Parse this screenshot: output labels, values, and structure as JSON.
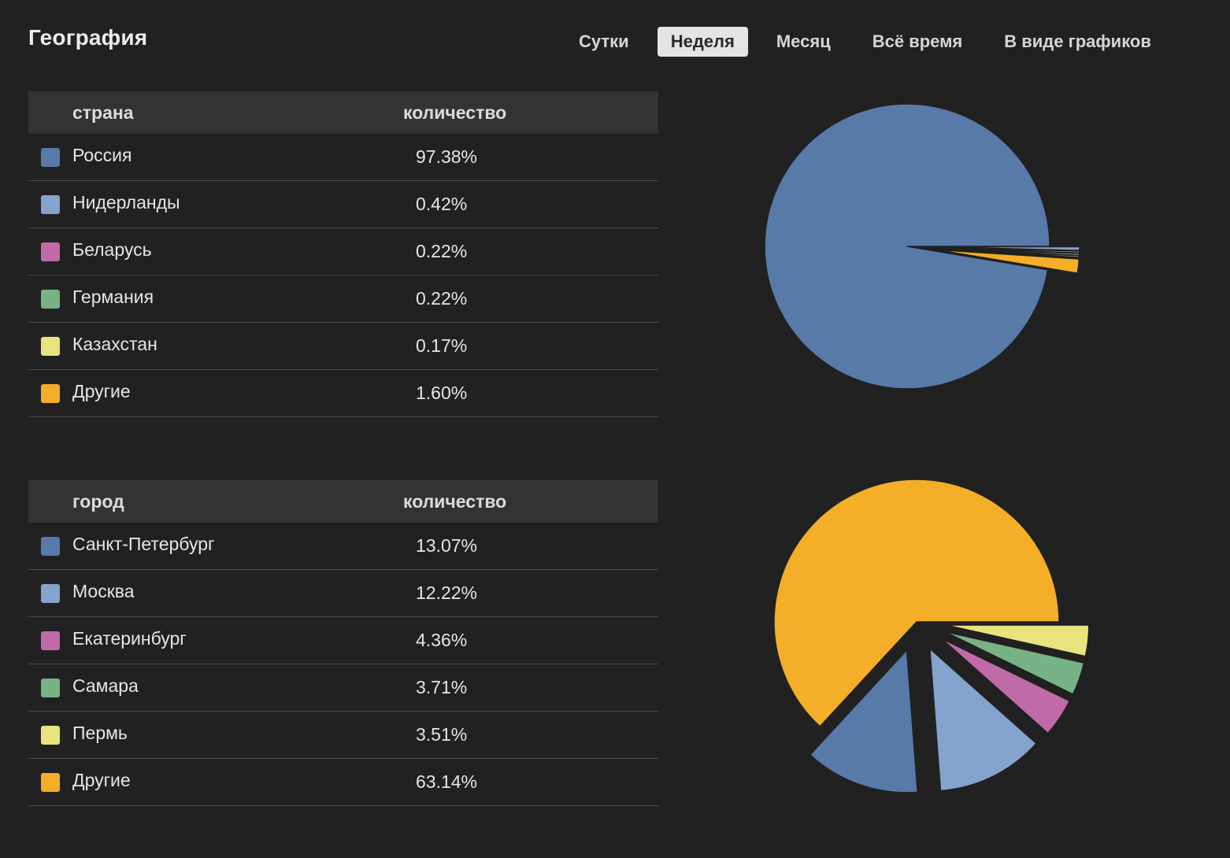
{
  "header": {
    "title": "География",
    "tabs": [
      {
        "label": "Сутки",
        "active": false
      },
      {
        "label": "Неделя",
        "active": true
      },
      {
        "label": "Месяц",
        "active": false
      },
      {
        "label": "Всё время",
        "active": false
      },
      {
        "label": "В виде графиков",
        "active": false
      }
    ]
  },
  "colors": {
    "blue": "#577aa8",
    "lightblue": "#84a3cd",
    "pink": "#c16aa8",
    "green": "#77b384",
    "yellow": "#e8e37d",
    "orange": "#f4ae27",
    "background": "#212121"
  },
  "country_table": {
    "col_name": "страна",
    "col_count": "количество",
    "rows": [
      {
        "name": "Россия",
        "value": "97.38%",
        "color": "#577aa8"
      },
      {
        "name": "Нидерланды",
        "value": "0.42%",
        "color": "#84a3cd"
      },
      {
        "name": "Беларусь",
        "value": "0.22%",
        "color": "#c16aa8"
      },
      {
        "name": "Германия",
        "value": "0.22%",
        "color": "#77b384"
      },
      {
        "name": "Казахстан",
        "value": "0.17%",
        "color": "#e8e37d"
      },
      {
        "name": "Другие",
        "value": "1.60%",
        "color": "#f4ae27"
      }
    ]
  },
  "city_table": {
    "col_name": "город",
    "col_count": "количество",
    "rows": [
      {
        "name": "Санкт-Петербург",
        "value": "13.07%",
        "color": "#577aa8"
      },
      {
        "name": "Москва",
        "value": "12.22%",
        "color": "#84a3cd"
      },
      {
        "name": "Екатеринбург",
        "value": "4.36%",
        "color": "#c16aa8"
      },
      {
        "name": "Самара",
        "value": "3.71%",
        "color": "#77b384"
      },
      {
        "name": "Пермь",
        "value": "3.51%",
        "color": "#e8e37d"
      },
      {
        "name": "Другие",
        "value": "63.14%",
        "color": "#f4ae27"
      }
    ]
  },
  "chart_data": [
    {
      "type": "pie",
      "categories": [
        "Россия",
        "Нидерланды",
        "Беларусь",
        "Германия",
        "Казахстан",
        "Другие"
      ],
      "values": [
        97.38,
        0.42,
        0.22,
        0.22,
        0.17,
        1.6
      ],
      "colors": [
        "#577aa8",
        "#84a3cd",
        "#c16aa8",
        "#77b384",
        "#e8e37d",
        "#f4ae27"
      ],
      "exploded": "all-but-largest"
    },
    {
      "type": "pie",
      "categories": [
        "Санкт-Петербург",
        "Москва",
        "Екатеринбург",
        "Самара",
        "Пермь",
        "Другие"
      ],
      "values": [
        13.07,
        12.22,
        4.36,
        3.71,
        3.51,
        63.14
      ],
      "colors": [
        "#577aa8",
        "#84a3cd",
        "#c16aa8",
        "#77b384",
        "#e8e37d",
        "#f4ae27"
      ],
      "exploded": "all-but-largest"
    }
  ]
}
